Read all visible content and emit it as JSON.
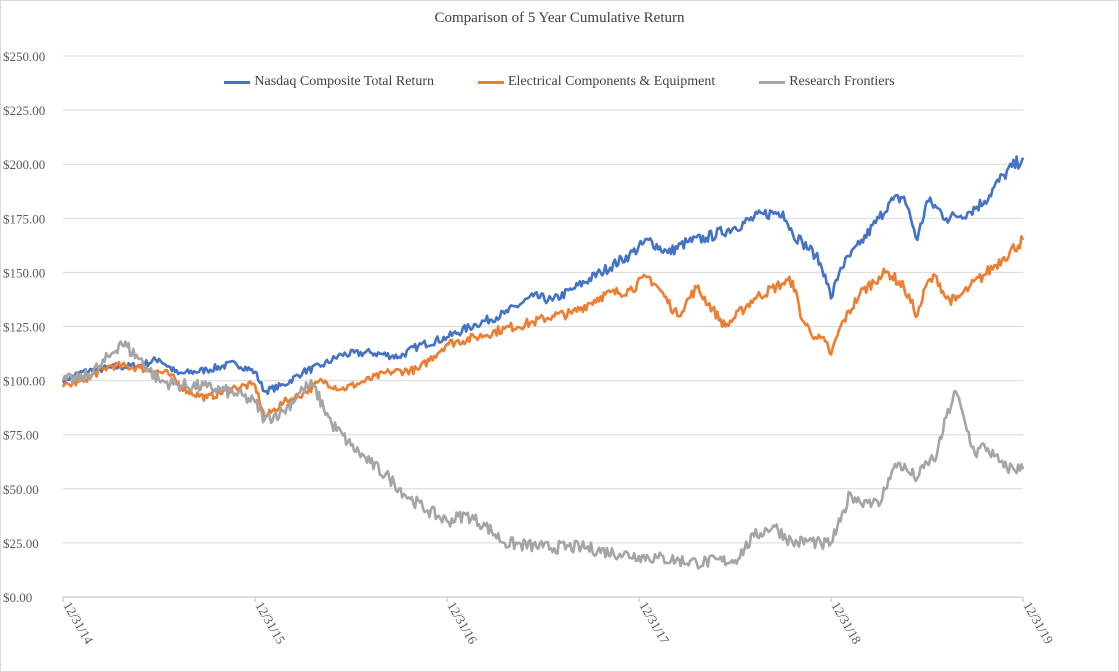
{
  "chart_data": {
    "type": "line",
    "title": "Comparison  of  5 Year Cumulative  Return",
    "xlabel": "",
    "ylabel": "",
    "ylim": [
      0,
      250
    ],
    "yticks": [
      "$0.00",
      "$25.00",
      "$50.00",
      "$75.00",
      "$100.00",
      "$125.00",
      "$150.00",
      "$175.00",
      "$200.00",
      "$225.00",
      "$250.00"
    ],
    "ytick_values": [
      0,
      25,
      50,
      75,
      100,
      125,
      150,
      175,
      200,
      225,
      250
    ],
    "xticks": [
      "12/31/14",
      "12/31/15",
      "12/31/16",
      "12/31/17",
      "12/31/18",
      "12/31/19"
    ],
    "xlim": [
      0,
      5
    ],
    "grid": true,
    "legend_position": "top",
    "series": [
      {
        "name": "Nasdaq Composite Total Return",
        "color": "#4472C4",
        "x": [
          0,
          0.1,
          0.25,
          0.4,
          0.5,
          0.6,
          0.75,
          0.9,
          1.0,
          1.05,
          1.15,
          1.25,
          1.35,
          1.45,
          1.6,
          1.75,
          1.85,
          2.0,
          2.15,
          2.3,
          2.45,
          2.55,
          2.65,
          2.8,
          2.95,
          3.05,
          3.15,
          3.25,
          3.35,
          3.5,
          3.65,
          3.75,
          3.8,
          3.85,
          3.92,
          3.97,
          4.0,
          4.05,
          4.15,
          4.25,
          4.3,
          4.38,
          4.45,
          4.5,
          4.55,
          4.6,
          4.65,
          4.72,
          4.8,
          4.9,
          5.0
        ],
        "y": [
          100,
          104,
          106,
          107,
          110,
          103,
          105,
          108,
          104,
          95,
          98,
          104,
          107,
          112,
          113,
          111,
          116,
          120,
          126,
          131,
          139,
          137,
          142,
          150,
          158,
          165,
          159,
          164,
          166,
          171,
          177,
          178,
          168,
          164,
          158,
          149,
          138,
          152,
          163,
          175,
          182,
          185,
          165,
          183,
          180,
          175,
          176,
          178,
          183,
          195,
          203
        ]
      },
      {
        "name": "Electrical Components & Equipment",
        "color": "#ED7D31",
        "x": [
          0,
          0.1,
          0.25,
          0.4,
          0.55,
          0.65,
          0.75,
          0.9,
          1.0,
          1.05,
          1.15,
          1.25,
          1.35,
          1.45,
          1.55,
          1.7,
          1.85,
          2.0,
          2.15,
          2.3,
          2.45,
          2.55,
          2.65,
          2.8,
          2.95,
          3.05,
          3.1,
          3.2,
          3.3,
          3.45,
          3.6,
          3.75,
          3.8,
          3.85,
          3.92,
          3.97,
          4.0,
          4.05,
          4.15,
          4.25,
          4.3,
          4.38,
          4.45,
          4.5,
          4.55,
          4.6,
          4.65,
          4.72,
          4.8,
          4.9,
          5.0
        ],
        "y": [
          97,
          100,
          107,
          106,
          103,
          95,
          92,
          97,
          98,
          83,
          90,
          94,
          100,
          96,
          99,
          104,
          105,
          117,
          120,
          124,
          127,
          130,
          131,
          139,
          142,
          148,
          143,
          130,
          143,
          125,
          138,
          145,
          146,
          128,
          120,
          118,
          112,
          125,
          140,
          148,
          150,
          143,
          130,
          145,
          148,
          138,
          137,
          143,
          149,
          157,
          165
        ]
      },
      {
        "name": "Research Frontiers",
        "color": "#A5A5A5",
        "x": [
          0,
          0.1,
          0.2,
          0.25,
          0.3,
          0.4,
          0.5,
          0.6,
          0.75,
          0.9,
          1.0,
          1.05,
          1.15,
          1.25,
          1.3,
          1.4,
          1.5,
          1.6,
          1.7,
          1.8,
          1.9,
          2.0,
          2.1,
          2.2,
          2.3,
          2.5,
          2.7,
          2.9,
          3.0,
          3.1,
          3.3,
          3.5,
          3.6,
          3.7,
          3.8,
          3.9,
          3.95,
          4.0,
          4.05,
          4.1,
          4.15,
          4.2,
          4.25,
          4.3,
          4.35,
          4.4,
          4.45,
          4.5,
          4.55,
          4.6,
          4.65,
          4.7,
          4.75,
          4.8,
          4.85,
          4.9,
          5.0
        ],
        "y": [
          100,
          101,
          107,
          112,
          118,
          110,
          100,
          98,
          97,
          94,
          90,
          82,
          86,
          96,
          98,
          80,
          70,
          62,
          55,
          46,
          40,
          35,
          38,
          33,
          25,
          23,
          23,
          20,
          19,
          18,
          16,
          17,
          28,
          33,
          25,
          26,
          24,
          25,
          35,
          48,
          44,
          45,
          42,
          55,
          62,
          58,
          55,
          62,
          65,
          83,
          95,
          80,
          66,
          70,
          65,
          60,
          59
        ]
      }
    ]
  }
}
